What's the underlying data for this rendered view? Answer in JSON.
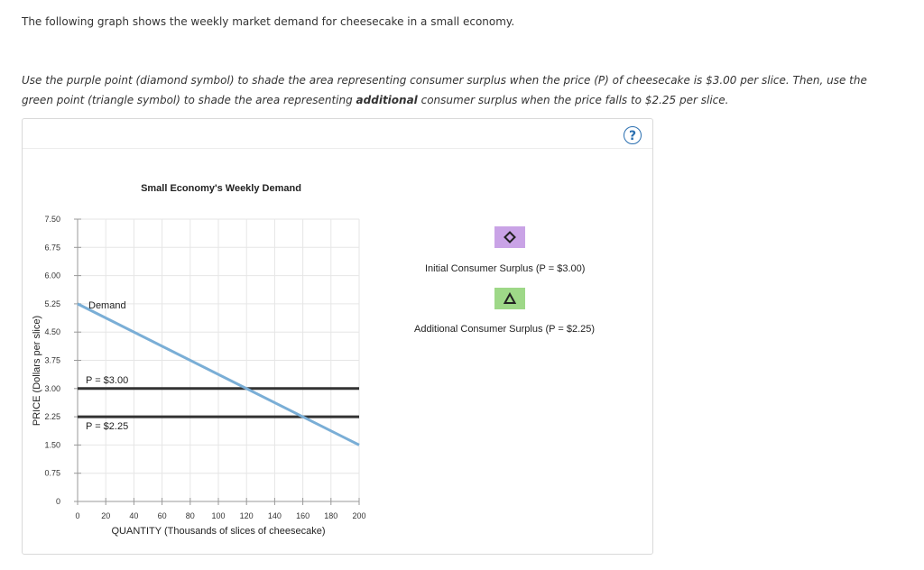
{
  "intro_text": "The following graph shows the weekly market demand for cheesecake in a small economy.",
  "instructions": {
    "part1": "Use the purple point (diamond symbol) to shade the area representing consumer surplus when the price (P) of cheesecake is $3.00 per slice. Then, use the green point (triangle symbol) to shade the area representing ",
    "bold": "additional",
    "part2": " consumer surplus when the price falls to $2.25 per slice."
  },
  "help_button": "?",
  "chart_data": {
    "type": "line",
    "title": "Small Economy's Weekly Demand",
    "xlabel": "QUANTITY (Thousands of slices of cheesecake)",
    "ylabel": "PRICE (Dollars per slice)",
    "xlim": [
      0,
      200
    ],
    "ylim": [
      0,
      7.5
    ],
    "x_ticks": [
      "0",
      "20",
      "40",
      "60",
      "80",
      "100",
      "120",
      "140",
      "160",
      "180",
      "200"
    ],
    "y_ticks": [
      "0",
      "0.75",
      "1.50",
      "2.25",
      "3.00",
      "3.75",
      "4.50",
      "5.25",
      "6.00",
      "6.75",
      "7.50"
    ],
    "grid": true,
    "demand": {
      "label": "Demand",
      "points": [
        [
          0,
          5.25
        ],
        [
          200,
          1.5
        ]
      ],
      "color": "#7aaed6"
    },
    "price_lines": [
      {
        "label": "P = $3.00",
        "y": 3.0,
        "color": "#333333"
      },
      {
        "label": "P = $2.25",
        "y": 2.25,
        "color": "#333333"
      }
    ]
  },
  "legend": {
    "items": [
      {
        "label": "Initial Consumer Surplus (P = $3.00)",
        "symbol": "diamond",
        "color": "#c9a3e6",
        "stroke": "#222222"
      },
      {
        "label": "Additional Consumer Surplus (P = $2.25)",
        "symbol": "triangle",
        "color": "#9ed888",
        "stroke": "#222222"
      }
    ]
  }
}
